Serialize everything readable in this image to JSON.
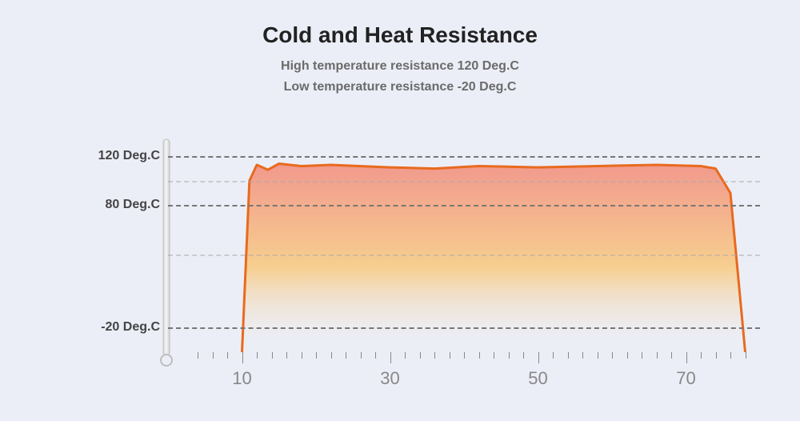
{
  "title": "Cold and Heat Resistance",
  "subtitle1": "High temperature resistance  120 Deg.C",
  "subtitle2": "Low temperature resistance  -20 Deg.C",
  "background_color": "#eceef7",
  "chart": {
    "type": "area",
    "x_domain": [
      0,
      80
    ],
    "y_domain": [
      -40,
      130
    ],
    "y_ticks": [
      {
        "value": 120,
        "label": "120 Deg.C"
      },
      {
        "value": 80,
        "label": "80 Deg.C"
      },
      {
        "value": -20,
        "label": "-20 Deg.C"
      }
    ],
    "x_major_ticks": [
      10,
      30,
      50,
      70
    ],
    "x_minor_step": 2,
    "x_minor_from": 4,
    "x_minor_to": 78,
    "gridline_color": "#777",
    "gridline_minor_color": "#e6e6ec",
    "line_color": "#e86a1e",
    "line_width": 3,
    "area_gradient_top": "#f28a7a",
    "area_gradient_bottom": "#f9c97d",
    "area_fade_bottom": "#eceef7",
    "thermometer_stroke": "#bdbdbd",
    "series": [
      {
        "x": 10,
        "y": -40
      },
      {
        "x": 11,
        "y": 100
      },
      {
        "x": 12,
        "y": 113
      },
      {
        "x": 13.5,
        "y": 109
      },
      {
        "x": 15,
        "y": 114
      },
      {
        "x": 18,
        "y": 112
      },
      {
        "x": 22,
        "y": 113
      },
      {
        "x": 30,
        "y": 111
      },
      {
        "x": 36,
        "y": 110
      },
      {
        "x": 42,
        "y": 112
      },
      {
        "x": 50,
        "y": 111
      },
      {
        "x": 58,
        "y": 112
      },
      {
        "x": 66,
        "y": 113
      },
      {
        "x": 72,
        "y": 112
      },
      {
        "x": 74,
        "y": 110
      },
      {
        "x": 76,
        "y": 90
      },
      {
        "x": 78,
        "y": -40
      }
    ]
  }
}
